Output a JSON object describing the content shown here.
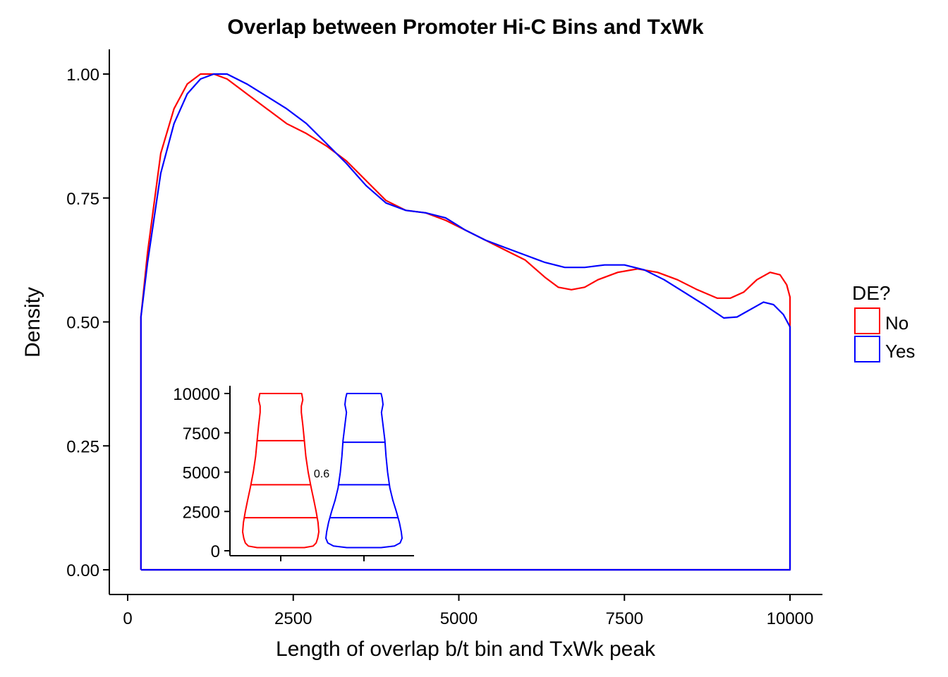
{
  "chart_data": [
    {
      "type": "area",
      "title": "Overlap between Promoter Hi-C Bins and TxWk",
      "xlabel": "Length of overlap b/t bin and TxWk peak",
      "ylabel": "Density",
      "xlim": [
        0,
        10000
      ],
      "ylim": [
        0,
        1.05
      ],
      "x_ticks": [
        0,
        2500,
        5000,
        7500,
        10000
      ],
      "y_ticks": [
        0.0,
        0.25,
        0.5,
        0.75,
        1.0
      ],
      "x_tick_labels": [
        "0",
        "2500",
        "5000",
        "7500",
        "10000"
      ],
      "y_tick_labels": [
        "0.00",
        "0.25",
        "0.50",
        "0.75",
        "1.00"
      ],
      "grid": false,
      "legend": {
        "title": "DE?",
        "position": "right",
        "entries": [
          "No",
          "Yes"
        ]
      },
      "series": [
        {
          "name": "No",
          "color": "#FF0000",
          "points": [
            [
              200,
              0.0
            ],
            [
              200,
              0.51
            ],
            [
              300,
              0.64
            ],
            [
              500,
              0.84
            ],
            [
              700,
              0.93
            ],
            [
              900,
              0.98
            ],
            [
              1100,
              1.0
            ],
            [
              1300,
              1.0
            ],
            [
              1500,
              0.99
            ],
            [
              1800,
              0.96
            ],
            [
              2100,
              0.93
            ],
            [
              2400,
              0.9
            ],
            [
              2700,
              0.88
            ],
            [
              3000,
              0.855
            ],
            [
              3300,
              0.825
            ],
            [
              3600,
              0.785
            ],
            [
              3900,
              0.745
            ],
            [
              4200,
              0.725
            ],
            [
              4500,
              0.72
            ],
            [
              4800,
              0.705
            ],
            [
              5100,
              0.685
            ],
            [
              5400,
              0.665
            ],
            [
              5700,
              0.645
            ],
            [
              6000,
              0.625
            ],
            [
              6300,
              0.59
            ],
            [
              6500,
              0.57
            ],
            [
              6700,
              0.565
            ],
            [
              6900,
              0.57
            ],
            [
              7100,
              0.585
            ],
            [
              7400,
              0.6
            ],
            [
              7700,
              0.607
            ],
            [
              8000,
              0.6
            ],
            [
              8300,
              0.585
            ],
            [
              8600,
              0.565
            ],
            [
              8900,
              0.548
            ],
            [
              9100,
              0.548
            ],
            [
              9300,
              0.56
            ],
            [
              9500,
              0.585
            ],
            [
              9700,
              0.6
            ],
            [
              9850,
              0.595
            ],
            [
              9950,
              0.575
            ],
            [
              10000,
              0.55
            ],
            [
              10000,
              0.0
            ],
            [
              200,
              0.0
            ]
          ]
        },
        {
          "name": "Yes",
          "color": "#0000FF",
          "points": [
            [
              200,
              0.0
            ],
            [
              200,
              0.51
            ],
            [
              300,
              0.62
            ],
            [
              500,
              0.8
            ],
            [
              700,
              0.9
            ],
            [
              900,
              0.96
            ],
            [
              1100,
              0.99
            ],
            [
              1300,
              1.0
            ],
            [
              1500,
              1.0
            ],
            [
              1800,
              0.98
            ],
            [
              2100,
              0.955
            ],
            [
              2400,
              0.93
            ],
            [
              2700,
              0.9
            ],
            [
              3000,
              0.86
            ],
            [
              3300,
              0.82
            ],
            [
              3600,
              0.775
            ],
            [
              3900,
              0.74
            ],
            [
              4200,
              0.725
            ],
            [
              4500,
              0.72
            ],
            [
              4800,
              0.71
            ],
            [
              5100,
              0.685
            ],
            [
              5400,
              0.665
            ],
            [
              5700,
              0.65
            ],
            [
              6000,
              0.635
            ],
            [
              6300,
              0.62
            ],
            [
              6600,
              0.61
            ],
            [
              6900,
              0.61
            ],
            [
              7200,
              0.615
            ],
            [
              7500,
              0.615
            ],
            [
              7800,
              0.605
            ],
            [
              8100,
              0.585
            ],
            [
              8400,
              0.56
            ],
            [
              8700,
              0.535
            ],
            [
              9000,
              0.508
            ],
            [
              9200,
              0.51
            ],
            [
              9400,
              0.525
            ],
            [
              9600,
              0.54
            ],
            [
              9750,
              0.535
            ],
            [
              9900,
              0.515
            ],
            [
              10000,
              0.49
            ],
            [
              10000,
              0.0
            ],
            [
              200,
              0.0
            ]
          ]
        }
      ]
    },
    {
      "type": "violin",
      "ylim": [
        0,
        10000
      ],
      "y_ticks": [
        0,
        2500,
        5000,
        7500,
        10000
      ],
      "y_tick_labels": [
        "0",
        "2500",
        "5000",
        "7500",
        "10000"
      ],
      "annotation": "0.6",
      "violins": [
        {
          "name": "No",
          "color": "#FF0000",
          "quantiles": [
            2100,
            4200,
            7000
          ],
          "range": [
            200,
            10000
          ],
          "profile": [
            [
              200,
              0.62
            ],
            [
              300,
              0.85
            ],
            [
              500,
              0.93
            ],
            [
              800,
              0.97
            ],
            [
              1200,
              1.0
            ],
            [
              1800,
              0.98
            ],
            [
              2500,
              0.93
            ],
            [
              3200,
              0.87
            ],
            [
              4000,
              0.8
            ],
            [
              5000,
              0.72
            ],
            [
              6000,
              0.66
            ],
            [
              7000,
              0.62
            ],
            [
              8000,
              0.58
            ],
            [
              8800,
              0.54
            ],
            [
              9200,
              0.54
            ],
            [
              9600,
              0.58
            ],
            [
              10000,
              0.55
            ]
          ]
        },
        {
          "name": "Yes",
          "color": "#0000FF",
          "quantiles": [
            2100,
            4200,
            6900
          ],
          "range": [
            200,
            10000
          ],
          "profile": [
            [
              200,
              0.45
            ],
            [
              300,
              0.8
            ],
            [
              500,
              0.95
            ],
            [
              800,
              1.0
            ],
            [
              1200,
              0.98
            ],
            [
              1800,
              0.93
            ],
            [
              2500,
              0.85
            ],
            [
              3200,
              0.76
            ],
            [
              4000,
              0.68
            ],
            [
              5000,
              0.62
            ],
            [
              6000,
              0.58
            ],
            [
              7000,
              0.55
            ],
            [
              8000,
              0.5
            ],
            [
              8800,
              0.46
            ],
            [
              9300,
              0.5
            ],
            [
              9700,
              0.48
            ],
            [
              10000,
              0.45
            ]
          ]
        }
      ]
    }
  ]
}
